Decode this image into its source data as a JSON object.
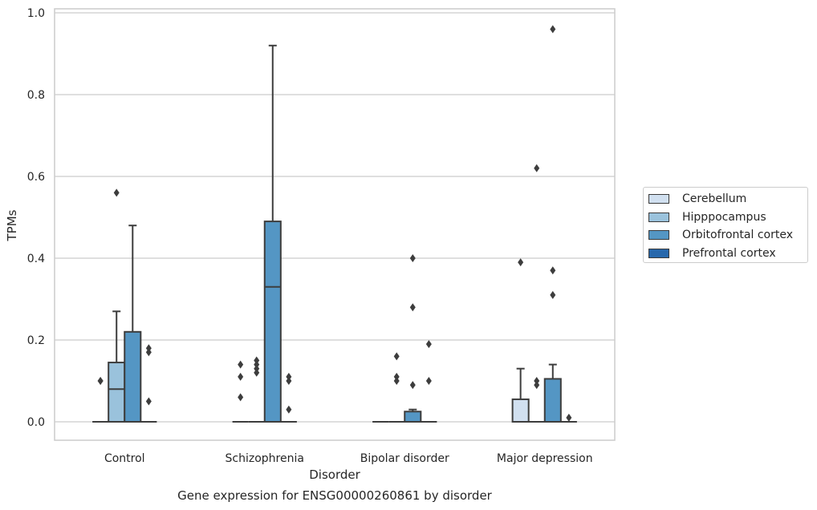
{
  "chart_data": {
    "type": "box",
    "title": "Gene expression for ENSG00000260861 by disorder",
    "xlabel": "Disorder",
    "ylabel": "TPMs",
    "ylim": [
      -0.045,
      1.012
    ],
    "yticks": [
      "0.0",
      "0.2",
      "0.4",
      "0.6",
      "0.8",
      "1.0"
    ],
    "categories": [
      "Control",
      "Schizophrenia",
      "Bipolar disorder",
      "Major depression"
    ],
    "grid": true,
    "legend_position": "right",
    "series": [
      {
        "name": "Cerebellum",
        "color": "#d1e0f0",
        "boxes": [
          {
            "q1": 0.0,
            "median": 0.0,
            "q3": 0.0,
            "whisker_low": 0.0,
            "whisker_high": 0.0,
            "outliers": [
              0.1,
              0.1
            ]
          },
          {
            "q1": 0.0,
            "median": 0.0,
            "q3": 0.0,
            "whisker_low": 0.0,
            "whisker_high": 0.0,
            "outliers": [
              0.14,
              0.11,
              0.06
            ]
          },
          {
            "q1": 0.0,
            "median": 0.0,
            "q3": 0.0,
            "whisker_low": 0.0,
            "whisker_high": 0.0,
            "outliers": []
          },
          {
            "q1": 0.0,
            "median": 0.0,
            "q3": 0.055,
            "whisker_low": 0.0,
            "whisker_high": 0.13,
            "outliers": [
              0.39
            ]
          }
        ]
      },
      {
        "name": "Hipppocampus",
        "color": "#9ac2dc",
        "boxes": [
          {
            "q1": 0.0,
            "median": 0.08,
            "q3": 0.145,
            "whisker_low": 0.0,
            "whisker_high": 0.27,
            "outliers": [
              0.56
            ]
          },
          {
            "q1": 0.0,
            "median": 0.0,
            "q3": 0.0,
            "whisker_low": 0.0,
            "whisker_high": 0.0,
            "outliers": [
              0.15,
              0.14,
              0.13,
              0.12
            ]
          },
          {
            "q1": 0.0,
            "median": 0.0,
            "q3": 0.0,
            "whisker_low": 0.0,
            "whisker_high": 0.0,
            "outliers": [
              0.16,
              0.11,
              0.1
            ]
          },
          {
            "q1": 0.0,
            "median": 0.0,
            "q3": 0.0,
            "whisker_low": 0.0,
            "whisker_high": 0.0,
            "outliers": [
              0.62,
              0.1,
              0.09
            ]
          }
        ]
      },
      {
        "name": "Orbitofrontal cortex",
        "color": "#5496c4",
        "boxes": [
          {
            "q1": 0.0,
            "median": 0.0,
            "q3": 0.22,
            "whisker_low": 0.0,
            "whisker_high": 0.48,
            "outliers": []
          },
          {
            "q1": 0.0,
            "median": 0.33,
            "q3": 0.49,
            "whisker_low": 0.0,
            "whisker_high": 0.92,
            "outliers": []
          },
          {
            "q1": 0.0,
            "median": 0.0,
            "q3": 0.025,
            "whisker_low": 0.0,
            "whisker_high": 0.03,
            "outliers": [
              0.4,
              0.28,
              0.09
            ]
          },
          {
            "q1": 0.0,
            "median": 0.0,
            "q3": 0.105,
            "whisker_low": 0.0,
            "whisker_high": 0.14,
            "outliers": [
              0.96,
              0.37,
              0.31
            ]
          }
        ]
      },
      {
        "name": "Prefrontal cortex",
        "color": "#2868ac",
        "boxes": [
          {
            "q1": 0.0,
            "median": 0.0,
            "q3": 0.0,
            "whisker_low": 0.0,
            "whisker_high": 0.0,
            "outliers": [
              0.18,
              0.17,
              0.05
            ]
          },
          {
            "q1": 0.0,
            "median": 0.0,
            "q3": 0.0,
            "whisker_low": 0.0,
            "whisker_high": 0.0,
            "outliers": [
              0.11,
              0.1,
              0.03
            ]
          },
          {
            "q1": 0.0,
            "median": 0.0,
            "q3": 0.0,
            "whisker_low": 0.0,
            "whisker_high": 0.0,
            "outliers": [
              0.19,
              0.1
            ]
          },
          {
            "q1": 0.0,
            "median": 0.0,
            "q3": 0.0,
            "whisker_low": 0.0,
            "whisker_high": 0.0,
            "outliers": [
              0.01
            ]
          }
        ]
      }
    ]
  }
}
